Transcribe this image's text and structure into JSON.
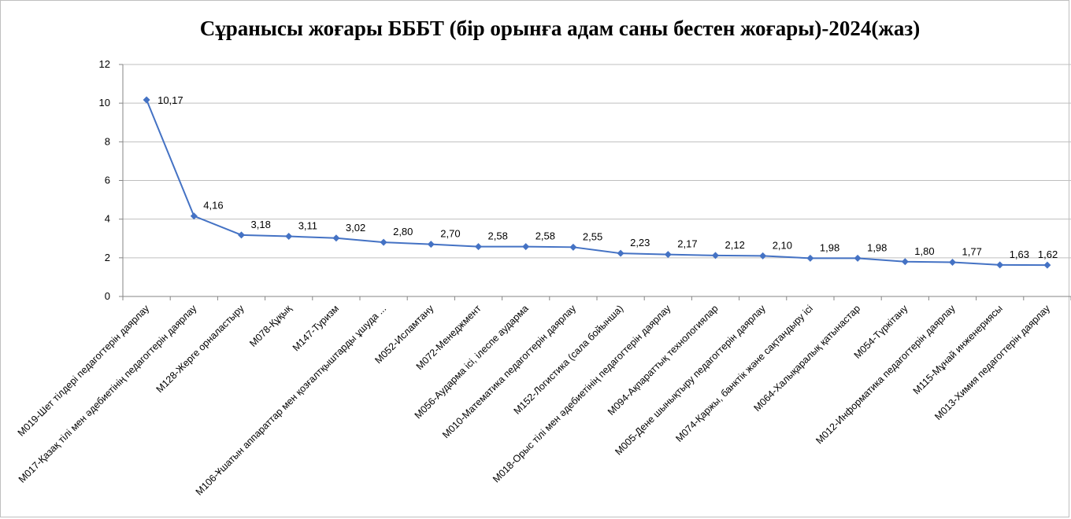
{
  "chart_data": {
    "type": "line",
    "title": "Сұранысы жоғары БББТ (бір орынға адам саны бестен жоғары)-2024(жаз)",
    "xlabel": "",
    "ylabel": "",
    "ylim": [
      0,
      12
    ],
    "yticks": [
      "0",
      "2",
      "4",
      "6",
      "8",
      "10",
      "12"
    ],
    "grid": true,
    "legend": "none",
    "line_color": "#4472C4",
    "categories": [
      "M019-Шет тілдері педагогтерін даярлау",
      "M017-Қазақ тілі мен әдебиетінің педагогтерін даярлау",
      "M128-Жерге орналастыру",
      "M078-Құқық",
      "M147-Туризм",
      "M106-Ұшатын аппараттар мен қозғалтқыштарды ұшуда ...",
      "M052-Исламтану",
      "M072-Менеджмент",
      "M056-Аударма ісі, ілеспе аударма",
      "M010-Математика педагогтерін даярлау",
      "M152-Логистика (сала бойынша)",
      "M018-Орыс тілі мен әдебиетінің педагогтерін даярлау",
      "M094-Ақпараттық технологиялар",
      "M005-Дене шынықтыру педагогтерін даярлау",
      "M074-Қаржы, банктік және сақтандыру ісі",
      "M064-Халықаралық қатынастар",
      "M054-Түркітану",
      "M012-Информатика педагогтерін даярлау",
      "M115-Мұнай инженериясы",
      "M013-Химия педагогтерін даярлау"
    ],
    "values": [
      10.17,
      4.16,
      3.18,
      3.11,
      3.02,
      2.8,
      2.7,
      2.58,
      2.58,
      2.55,
      2.23,
      2.17,
      2.12,
      2.1,
      1.98,
      1.98,
      1.8,
      1.77,
      1.63,
      1.62
    ],
    "data_labels": [
      "10,17",
      "4,16",
      "3,18",
      "3,11",
      "3,02",
      "2,80",
      "2,70",
      "2,58",
      "2,58",
      "2,55",
      "2,23",
      "2,17",
      "2,12",
      "2,10",
      "1,98",
      "1,98",
      "1,80",
      "1,77",
      "1,63",
      "1,62"
    ]
  }
}
